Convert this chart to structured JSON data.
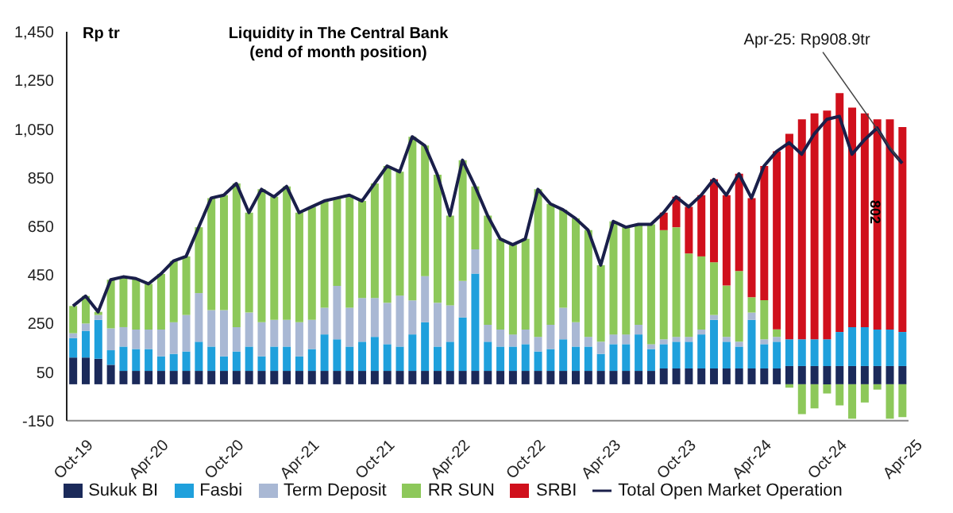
{
  "chart_data": {
    "type": "bar",
    "title": "Liquidity in The Central Bank",
    "subtitle": "(end of month position)",
    "ylabel": "Rp tr",
    "stacked": true,
    "categories": [
      "Oct-19",
      null,
      null,
      null,
      null,
      null,
      "Apr-20",
      null,
      null,
      null,
      null,
      null,
      "Oct-20",
      null,
      null,
      null,
      null,
      null,
      "Apr-21",
      null,
      null,
      null,
      null,
      null,
      "Oct-21",
      null,
      null,
      null,
      null,
      null,
      "Apr-22",
      null,
      null,
      null,
      null,
      null,
      "Oct-22",
      null,
      null,
      null,
      null,
      null,
      "Apr-23",
      null,
      null,
      null,
      null,
      null,
      "Oct-23",
      null,
      null,
      null,
      null,
      null,
      "Apr-24",
      null,
      null,
      null,
      null,
      null,
      "Oct-24",
      null,
      null,
      null,
      null,
      null,
      "Apr-25"
    ],
    "series": [
      {
        "name": "Sukuk BI",
        "color": "#1b2a5a",
        "values": [
          110,
          110,
          105,
          80,
          55,
          55,
          55,
          55,
          55,
          55,
          55,
          55,
          55,
          55,
          55,
          55,
          55,
          55,
          55,
          55,
          55,
          55,
          55,
          55,
          55,
          55,
          55,
          55,
          55,
          55,
          55,
          55,
          55,
          55,
          55,
          55,
          55,
          55,
          55,
          55,
          55,
          55,
          55,
          55,
          55,
          55,
          55,
          65,
          65,
          65,
          65,
          65,
          65,
          65,
          65,
          65,
          65,
          75,
          75,
          75,
          75,
          75,
          75,
          75,
          75,
          75,
          75
        ]
      },
      {
        "name": "Fasbi",
        "color": "#1fa0dc",
        "values": [
          80,
          110,
          160,
          60,
          100,
          90,
          90,
          60,
          70,
          80,
          120,
          100,
          60,
          80,
          100,
          60,
          100,
          100,
          60,
          90,
          150,
          130,
          100,
          120,
          140,
          110,
          100,
          150,
          200,
          100,
          120,
          220,
          400,
          120,
          100,
          100,
          110,
          80,
          90,
          130,
          100,
          100,
          70,
          110,
          110,
          150,
          90,
          100,
          110,
          110,
          140,
          200,
          110,
          90,
          200,
          100,
          110,
          110,
          110,
          110,
          110,
          140,
          160,
          160,
          150,
          150,
          140
        ]
      },
      {
        "name": "Term Deposit",
        "color": "#a9b8d4",
        "values": [
          20,
          30,
          20,
          90,
          80,
          80,
          80,
          110,
          130,
          150,
          200,
          150,
          190,
          100,
          140,
          140,
          110,
          110,
          140,
          120,
          110,
          220,
          160,
          180,
          160,
          170,
          210,
          140,
          190,
          180,
          150,
          150,
          100,
          70,
          70,
          50,
          60,
          60,
          100,
          130,
          100,
          40,
          50,
          40,
          40,
          40,
          20,
          20,
          20,
          20,
          20,
          20,
          20,
          20,
          30,
          20,
          20,
          null,
          null,
          null,
          null,
          null,
          null,
          null,
          null,
          null,
          null
        ]
      },
      {
        "name": "RR SUN",
        "color": "#8dc85a",
        "values": [
          112,
          113,
          13,
          200,
          207,
          210,
          188,
          229,
          252,
          241,
          271,
          461,
          473,
          591,
          411,
          547,
          506,
          549,
          451,
          465,
          439,
          361,
          463,
          399,
          471,
          563,
          509,
          673,
          537,
          527,
          369,
          497,
          259,
          449,
          373,
          369,
          373,
          607,
          497,
          403,
          427,
          439,
          315,
          465,
          441,
          413,
          493,
          449,
          451,
          343,
          301,
          217,
          211,
          291,
          63,
          161,
          31,
          -14,
          -123,
          -99,
          -38,
          -87,
          -142,
          -75,
          -22,
          -142,
          -135
        ]
      },
      {
        "name": "SRBI",
        "color": "#d0101c",
        "values": [
          null,
          null,
          null,
          null,
          null,
          null,
          null,
          null,
          null,
          null,
          null,
          null,
          null,
          null,
          null,
          null,
          null,
          null,
          null,
          null,
          null,
          null,
          null,
          null,
          null,
          null,
          null,
          null,
          null,
          null,
          null,
          null,
          null,
          null,
          null,
          null,
          null,
          null,
          null,
          null,
          null,
          null,
          null,
          null,
          null,
          null,
          null,
          72,
          125,
          192,
          252,
          341,
          372,
          400,
          408,
          552,
          732,
          845,
          905,
          929,
          941,
          983,
          903,
          879,
          865,
          865,
          843
        ]
      },
      {
        "name": "Total Open Market Operation",
        "type": "line",
        "color": "#1a1f4a",
        "values": [
          322,
          363,
          298,
          430,
          442,
          435,
          413,
          454,
          507,
          526,
          646,
          766,
          778,
          826,
          706,
          802,
          771,
          814,
          706,
          730,
          754,
          766,
          778,
          754,
          826,
          898,
          874,
          1018,
          982,
          862,
          694,
          922,
          814,
          694,
          598,
          574,
          598,
          802,
          742,
          718,
          682,
          634,
          490,
          670,
          646,
          658,
          658,
          706,
          771,
          730,
          778,
          843,
          778,
          866,
          766,
          898,
          958,
          994,
          946,
          1030,
          1090,
          1102,
          946,
          1006,
          1054,
          970,
          908.9
        ]
      }
    ],
    "ylim": [
      -150,
      1450
    ],
    "yticks": [
      -150,
      50,
      250,
      450,
      650,
      850,
      {
        "value": 1050,
        "label": "1,050"
      },
      {
        "value": 1250,
        "label": "1,250"
      },
      {
        "value": 1450,
        "label": "1,450"
      }
    ],
    "grid": false,
    "legend": "bottom",
    "marker": "none",
    "annotations": [
      {
        "text": "Apr-25: Rp908.9tr",
        "x": "Apr-25",
        "y": 908.9
      },
      "802"
    ]
  }
}
